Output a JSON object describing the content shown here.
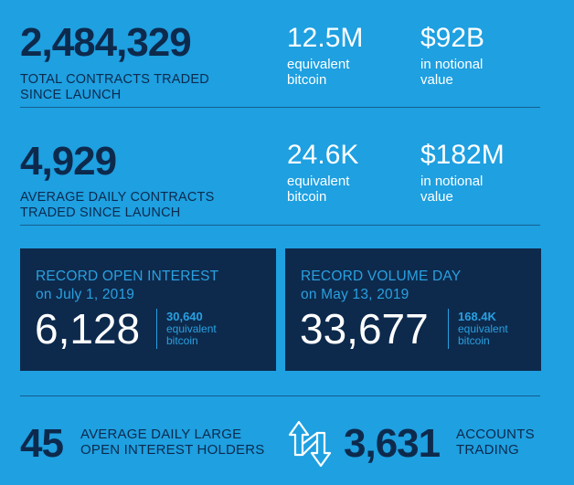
{
  "colors": {
    "background": "#1ea0e1",
    "navy": "#0d2a4d",
    "accent_blue": "#2aa0e0",
    "white": "#ffffff"
  },
  "row1": {
    "main_value": "2,484,329",
    "main_label_1": "TOTAL CONTRACTS TRADED",
    "main_label_2": "SINCE LAUNCH",
    "stat_a_value": "12.5M",
    "stat_a_label_1": "equivalent",
    "stat_a_label_2": "bitcoin",
    "stat_b_value": "$92B",
    "stat_b_label_1": "in notional",
    "stat_b_label_2": "value"
  },
  "row2": {
    "main_value": "4,929",
    "main_label_1": "AVERAGE DAILY CONTRACTS",
    "main_label_2": "TRADED SINCE LAUNCH",
    "stat_a_value": "24.6K",
    "stat_a_label_1": "equivalent",
    "stat_a_label_2": "bitcoin",
    "stat_b_value": "$182M",
    "stat_b_label_1": "in notional",
    "stat_b_label_2": "value"
  },
  "box_open_interest": {
    "title": "RECORD OPEN INTEREST",
    "date": "on July 1, 2019",
    "value": "6,128",
    "sub_value": "30,640",
    "sub_label_1": "equivalent",
    "sub_label_2": "bitcoin"
  },
  "box_volume_day": {
    "title": "RECORD VOLUME DAY",
    "date": "on May 13, 2019",
    "value": "33,677",
    "sub_value": "168.4K",
    "sub_label_1": "equivalent",
    "sub_label_2": "bitcoin"
  },
  "bottom": {
    "holders_value": "45",
    "holders_label_1": "AVERAGE DAILY LARGE",
    "holders_label_2": "OPEN INTEREST HOLDERS",
    "accounts_value": "3,631",
    "accounts_label_1": "ACCOUNTS",
    "accounts_label_2": "TRADING",
    "icon": "exchange-arrows-icon"
  }
}
